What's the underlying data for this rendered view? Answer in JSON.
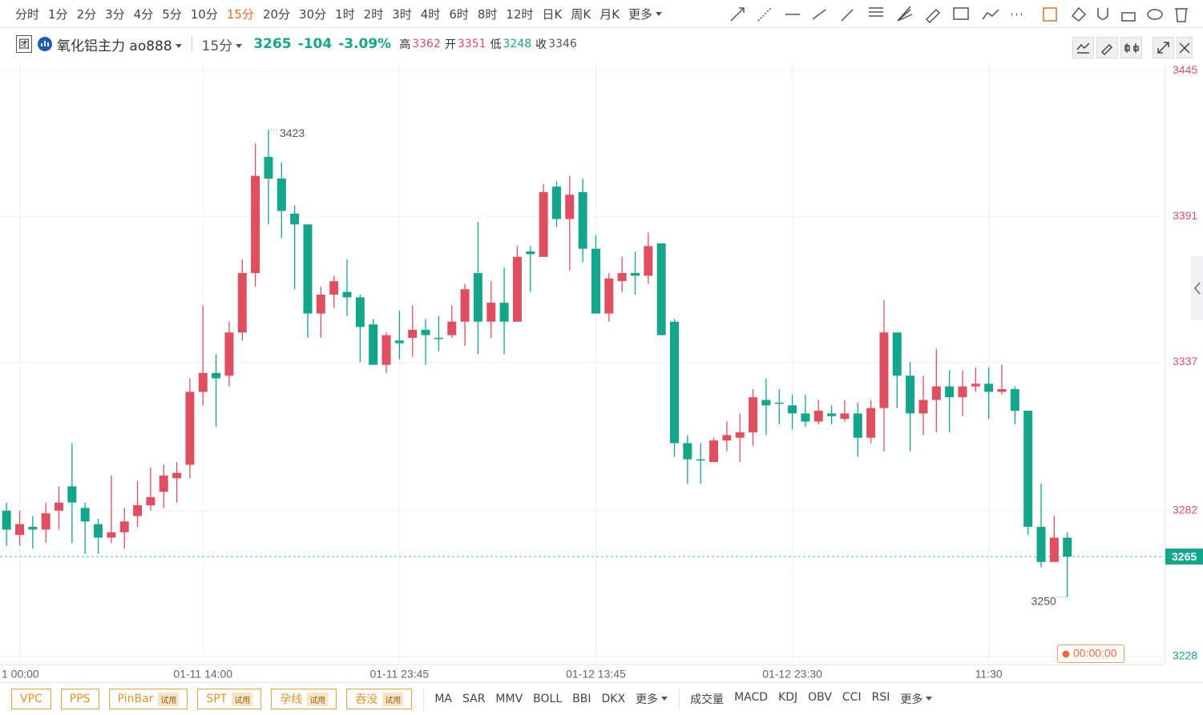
{
  "toolbar": {
    "periods": [
      "分时",
      "1分",
      "2分",
      "3分",
      "4分",
      "5分",
      "10分",
      "15分",
      "20分",
      "30分",
      "1时",
      "2时",
      "3时",
      "4时",
      "6时",
      "8时",
      "12时",
      "日K",
      "周K",
      "月K"
    ],
    "more": "更多"
  },
  "header": {
    "badge": "团",
    "symbol": "氧化铝主力 ao888",
    "period": "15分",
    "last": 3265,
    "change": -104,
    "change_pct": "-3.09%",
    "high_label": "高",
    "high": 3362,
    "open_label": "开",
    "open": 3351,
    "low_label": "低",
    "low": 3248,
    "close_label": "收",
    "close": 3346
  },
  "chart_data": {
    "type": "candlestick",
    "categories": [
      null,
      "1 00:00",
      null,
      null,
      null,
      null,
      null,
      null,
      null,
      null,
      null,
      null,
      null,
      null,
      null,
      "01-11 14:00",
      null,
      null,
      null,
      null,
      null,
      null,
      null,
      null,
      null,
      null,
      null,
      null,
      null,
      null,
      "01-11 23:45",
      null,
      null,
      null,
      null,
      null,
      null,
      null,
      null,
      null,
      null,
      null,
      null,
      null,
      null,
      "01-12 13:45",
      null,
      null,
      null,
      null,
      null,
      null,
      null,
      null,
      null,
      null,
      null,
      null,
      null,
      null,
      "01-12 23:30",
      null,
      null,
      null,
      null,
      null,
      null,
      null,
      null,
      null,
      null,
      null,
      null,
      null,
      null,
      "11:30",
      null,
      null,
      null,
      null,
      null,
      null
    ],
    "open": [
      3282,
      3273,
      3276,
      3275,
      3282,
      3291,
      3283,
      3277,
      3272,
      3274,
      3280,
      3284,
      3289,
      3294,
      3299,
      3326,
      3333,
      3332,
      3348,
      3370,
      3413,
      3405,
      3392,
      3388,
      3355,
      3362,
      3363,
      3361,
      3351,
      3336,
      3345,
      3346,
      3349,
      3346,
      3347,
      3352,
      3370,
      3352,
      3359,
      3352,
      3378,
      3376,
      3402,
      3390,
      3400,
      3379,
      3355,
      3367,
      3370,
      3369,
      3381,
      3352,
      3307,
      3301,
      3300,
      3308,
      3309,
      3311,
      3323,
      3322,
      3321,
      3318,
      3315,
      3318,
      3316,
      3318,
      3309,
      3320,
      3348,
      3332,
      3318,
      3323,
      3328,
      3324,
      3328,
      3329,
      3326,
      3327,
      3319,
      3276,
      3263,
      3272
    ],
    "high": [
      3285,
      3282,
      3280,
      3285,
      3291,
      3307,
      3285,
      3279,
      3295,
      3283,
      3293,
      3298,
      3299,
      3300,
      3331,
      3358,
      3340,
      3352,
      3375,
      3418,
      3423,
      3411,
      3395,
      3388,
      3365,
      3369,
      3375,
      3362,
      3353,
      3348,
      3356,
      3358,
      3353,
      3354,
      3358,
      3366,
      3389,
      3367,
      3372,
      3380,
      3380,
      3403,
      3404,
      3406,
      3405,
      3384,
      3370,
      3376,
      3378,
      3385,
      3381,
      3353,
      3310,
      3307,
      3309,
      3315,
      3318,
      3327,
      3331,
      3327,
      3325,
      3325,
      3323,
      3321,
      3323,
      3322,
      3323,
      3360,
      3348,
      3337,
      3332,
      3342,
      3334,
      3334,
      3335,
      3335,
      3336,
      3328,
      3319,
      3292,
      3280,
      3274
    ],
    "low": [
      3269,
      3269,
      3268,
      3270,
      3275,
      3270,
      3266,
      3266,
      3270,
      3268,
      3276,
      3282,
      3283,
      3285,
      3294,
      3321,
      3313,
      3328,
      3345,
      3365,
      3388,
      3383,
      3364,
      3346,
      3346,
      3357,
      3354,
      3337,
      3336,
      3333,
      3338,
      3339,
      3336,
      3341,
      3346,
      3343,
      3340,
      3346,
      3340,
      3352,
      3363,
      3376,
      3387,
      3371,
      3374,
      3355,
      3352,
      3363,
      3362,
      3366,
      3347,
      3302,
      3292,
      3292,
      3300,
      3304,
      3300,
      3306,
      3310,
      3314,
      3312,
      3313,
      3314,
      3314,
      3315,
      3302,
      3307,
      3304,
      3320,
      3304,
      3310,
      3311,
      3311,
      3317,
      3326,
      3316,
      3325,
      3314,
      3273,
      3261,
      3263,
      3250
    ],
    "close": [
      3275,
      3277,
      3275,
      3281,
      3285,
      3285,
      3278,
      3272,
      3274,
      3278,
      3284,
      3287,
      3295,
      3296,
      3326,
      3333,
      3331,
      3348,
      3370,
      3406,
      3405,
      3393,
      3388,
      3355,
      3362,
      3367,
      3361,
      3350,
      3336,
      3347,
      3344,
      3349,
      3347,
      3346,
      3352,
      3364,
      3352,
      3359,
      3352,
      3376,
      3377,
      3400,
      3390,
      3399,
      3379,
      3355,
      3368,
      3370,
      3369,
      3380,
      3347,
      3307,
      3301,
      3301,
      3308,
      3310,
      3311,
      3324,
      3321,
      3322,
      3318,
      3315,
      3319,
      3317,
      3318,
      3309,
      3320,
      3348,
      3332,
      3318,
      3323,
      3328,
      3324,
      3328,
      3329,
      3326,
      3327,
      3319,
      3276,
      3263,
      3272,
      3265
    ],
    "up_color": "#e04f5f",
    "down_color": "#13a68a",
    "ylim": [
      3225,
      3448
    ],
    "yticks": [
      3228,
      3282,
      3337,
      3391,
      3445
    ],
    "grid": true,
    "max_label": 3423,
    "min_label": 3250,
    "last_price": 3265,
    "timer": "00:00:00"
  },
  "bottom": {
    "patterns": [
      {
        "name": "VPC"
      },
      {
        "name": "PPS"
      },
      {
        "name": "PinBar",
        "tag": "试用"
      },
      {
        "name": "SPT",
        "tag": "试用"
      },
      {
        "name": "孕线",
        "tag": "试用"
      },
      {
        "name": "吞没",
        "tag": "试用"
      }
    ],
    "indicators": [
      "MA",
      "SAR",
      "MMV",
      "BOLL",
      "BBI",
      "DKX"
    ],
    "indicators_more": "更多",
    "sub_indicators": [
      "成交量",
      "MACD",
      "KDJ",
      "OBV",
      "CCI",
      "RSI"
    ],
    "sub_more": "更多"
  }
}
